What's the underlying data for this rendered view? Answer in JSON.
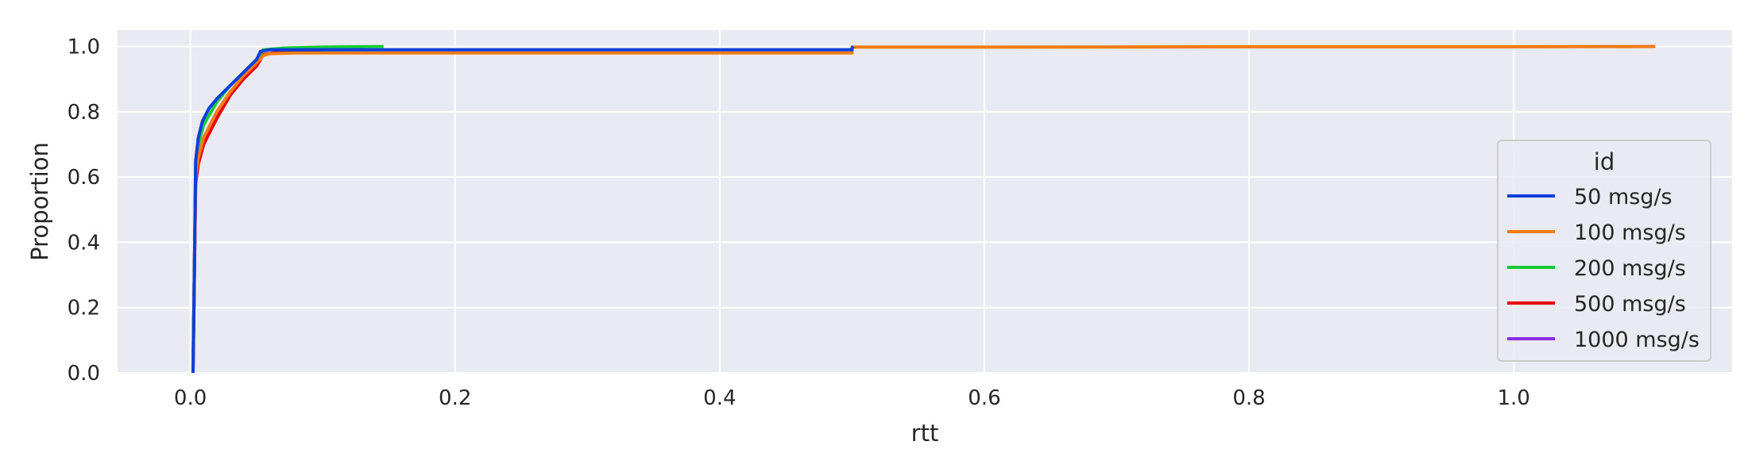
{
  "chart_data": {
    "type": "line",
    "subtype": "ecdf",
    "title": "",
    "xlabel": "rtt",
    "ylabel": "Proportion",
    "xlim": [
      -0.055,
      1.165
    ],
    "ylim": [
      0.0,
      1.05
    ],
    "xticks": [
      0.0,
      0.2,
      0.4,
      0.6,
      0.8,
      1.0
    ],
    "xtick_labels": [
      "0.0",
      "0.2",
      "0.4",
      "0.6",
      "0.8",
      "1.0"
    ],
    "yticks": [
      0.0,
      0.2,
      0.4,
      0.6,
      0.8,
      1.0
    ],
    "ytick_labels": [
      "0.0",
      "0.2",
      "0.4",
      "0.6",
      "0.8",
      "1.0"
    ],
    "grid": true,
    "background": "#eaeaf2",
    "grid_color": "#ffffff",
    "legend": {
      "title": "id",
      "position": "right"
    },
    "series": [
      {
        "name": "50 msg/s",
        "color": "#0a3fdc",
        "x": [
          0.002,
          0.003,
          0.004,
          0.006,
          0.009,
          0.014,
          0.02,
          0.03,
          0.04,
          0.05,
          0.053,
          0.06,
          0.08,
          0.1,
          0.15,
          0.2,
          0.3,
          0.4,
          0.5,
          0.5,
          0.501
        ],
        "y": [
          0.0,
          0.3,
          0.65,
          0.72,
          0.77,
          0.81,
          0.84,
          0.88,
          0.92,
          0.96,
          0.985,
          0.99,
          0.99,
          0.99,
          0.99,
          0.99,
          0.99,
          0.99,
          0.99,
          0.995,
          1.0
        ]
      },
      {
        "name": "100 msg/s",
        "color": "#f27c16",
        "x": [
          0.002,
          0.003,
          0.004,
          0.006,
          0.01,
          0.02,
          0.03,
          0.04,
          0.05,
          0.055,
          0.06,
          0.08,
          0.1,
          0.2,
          0.3,
          0.4,
          0.5,
          0.5,
          0.6,
          0.8,
          1.0,
          1.107
        ],
        "y": [
          0.0,
          0.3,
          0.6,
          0.66,
          0.72,
          0.8,
          0.86,
          0.91,
          0.95,
          0.972,
          0.978,
          0.98,
          0.98,
          0.98,
          0.98,
          0.98,
          0.98,
          0.998,
          0.998,
          0.999,
          0.999,
          1.0
        ]
      },
      {
        "name": "200 msg/s",
        "color": "#1ac938",
        "x": [
          0.002,
          0.003,
          0.004,
          0.006,
          0.01,
          0.02,
          0.03,
          0.04,
          0.05,
          0.055,
          0.07,
          0.1,
          0.12,
          0.146
        ],
        "y": [
          0.0,
          0.3,
          0.64,
          0.7,
          0.76,
          0.83,
          0.88,
          0.92,
          0.96,
          0.99,
          0.995,
          0.998,
          0.999,
          1.0
        ]
      },
      {
        "name": "500 msg/s",
        "color": "#e8000b",
        "x": [
          0.002,
          0.003,
          0.004,
          0.006,
          0.01,
          0.02,
          0.03,
          0.04,
          0.05,
          0.055,
          0.07,
          0.1,
          0.13
        ],
        "y": [
          0.0,
          0.3,
          0.58,
          0.64,
          0.7,
          0.78,
          0.85,
          0.9,
          0.94,
          0.975,
          0.985,
          0.99,
          0.992
        ]
      },
      {
        "name": "1000 msg/s",
        "color": "#8b2be2",
        "x": [
          0.002,
          0.003,
          0.004,
          0.006,
          0.01,
          0.02,
          0.03,
          0.04,
          0.05,
          0.055,
          0.07,
          0.1
        ],
        "y": [
          0.0,
          0.3,
          0.6,
          0.66,
          0.72,
          0.8,
          0.86,
          0.9,
          0.94,
          0.975,
          0.985,
          0.99
        ]
      }
    ]
  }
}
